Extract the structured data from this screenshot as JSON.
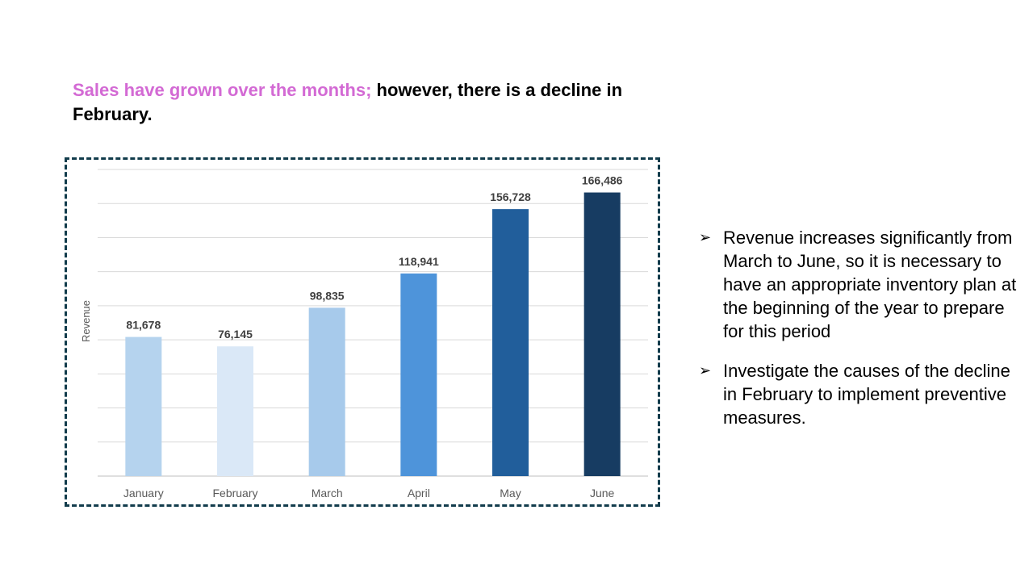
{
  "headline": {
    "highlight": "Sales have grown over the months;",
    "rest": " however, there is a decline in February."
  },
  "colors": {
    "highlight": "#d36ad4",
    "frame": "#123c4c"
  },
  "chart_data": {
    "type": "bar",
    "categories": [
      "January",
      "February",
      "March",
      "April",
      "May",
      "June"
    ],
    "values": [
      81678,
      76145,
      98835,
      118941,
      156728,
      166486
    ],
    "value_labels": [
      "81,678",
      "76,145",
      "98,835",
      "118,941",
      "156,728",
      "166,486"
    ],
    "bar_colors": [
      "#b5d3ee",
      "#dae8f7",
      "#a7caeb",
      "#4e94da",
      "#215e9b",
      "#173c62"
    ],
    "ylabel": "Revenue",
    "ylim": [
      0,
      180000
    ],
    "grid": true,
    "legend": "none"
  },
  "bullets": [
    {
      "marker": "➢",
      "text": "Revenue increases significantly from March to June, so it is necessary to have an appropriate inventory plan at the beginning of the year to prepare for this period"
    },
    {
      "marker": "➢",
      "text": "Investigate the causes of the decline in February to implement preventive measures."
    }
  ]
}
